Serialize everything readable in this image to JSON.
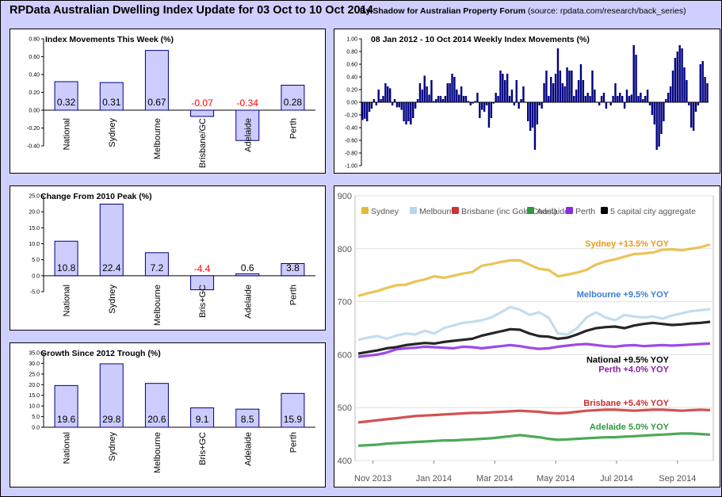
{
  "header": {
    "title": "RPData Australian Dwelling Index Update for 03 Oct to 10 Oct 2014",
    "by": "By Shadow for Australian Property Forum",
    "source": "(source: rpdata.com/research/back_series)"
  },
  "colors": {
    "bar_fill": "#ccccff",
    "bar_stroke": "#000080",
    "negative_label": "#ff0000",
    "weekly_bar": "#000080",
    "panel_bg": "#ffffff",
    "page_bg": "#cfcfff"
  },
  "chart_data": [
    {
      "id": "index-movements",
      "type": "bar",
      "title": "Index Movements This Week (%)",
      "categories": [
        "National",
        "Sydney",
        "Melbourne",
        "Brisbane/GC",
        "Adelaide",
        "Perth"
      ],
      "values": [
        0.32,
        0.31,
        0.67,
        -0.07,
        -0.34,
        0.28
      ],
      "labels": [
        "0.32",
        "0.31",
        "0.67",
        "-0.07",
        "-0.34",
        "0.28"
      ],
      "ylim": [
        -0.4,
        0.8
      ],
      "yticks": [
        "0.80",
        "0.60",
        "0.40",
        "0.20",
        "0.00",
        "-0.20",
        "-0.40"
      ],
      "ytick_values": [
        0.8,
        0.6,
        0.4,
        0.2,
        0.0,
        -0.2,
        -0.4
      ]
    },
    {
      "id": "weekly-movements",
      "type": "bar",
      "title": "08 Jan 2012 - 10 Oct 2014 Weekly Index Movements (%)",
      "ylim": [
        -1.0,
        1.0
      ],
      "yticks": [
        "1.00",
        "0.80",
        "0.60",
        "0.40",
        "0.20",
        "0.00",
        "-0.20",
        "-0.40",
        "-0.60",
        "-0.80",
        "-1.00"
      ],
      "ytick_values": [
        1.0,
        0.8,
        0.6,
        0.4,
        0.2,
        0.0,
        -0.2,
        -0.4,
        -0.6,
        -0.8,
        -1.0
      ],
      "values": [
        -0.28,
        -0.26,
        -0.3,
        -0.15,
        -0.1,
        0.05,
        -0.05,
        0.2,
        0.05,
        0.1,
        0.3,
        0.25,
        0.22,
        -0.05,
        0.05,
        -0.08,
        -0.08,
        -0.12,
        -0.3,
        -0.35,
        -0.3,
        -0.35,
        -0.25,
        -0.1,
        0.05,
        0.3,
        0.2,
        0.42,
        0.25,
        0.12,
        0.35,
        0.02,
        0.05,
        0.1,
        0.1,
        0.05,
        0.1,
        0.3,
        0.3,
        0.45,
        0.4,
        0.2,
        0.12,
        0.25,
        0.1,
        0.1,
        0.02,
        -0.05,
        -0.02,
        0.02,
        0.15,
        -0.25,
        -0.12,
        -0.15,
        -0.05,
        -0.4,
        -0.25,
        -0.02,
        0.15,
        0.1,
        0.5,
        0.45,
        0.35,
        0.45,
        0.1,
        0.2,
        -0.05,
        0.35,
        -0.1,
        0.05,
        0.25,
        0.0,
        -0.3,
        -0.45,
        -0.4,
        -0.75,
        -0.35,
        -0.05,
        -0.1,
        0.3,
        0.5,
        0.1,
        0.4,
        0.3,
        0.45,
        0.85,
        0.5,
        0.3,
        0.25,
        0.55,
        0.5,
        0.5,
        0.1,
        0.2,
        0.35,
        0.6,
        0.35,
        0.1,
        0.15,
        0.1,
        0.5,
        0.2,
        0.0,
        -0.05,
        0.1,
        0.15,
        -0.1,
        0.0,
        -0.05,
        0.1,
        0.3,
        0.1,
        0.15,
        0.1,
        -0.1,
        0.2,
        0.1,
        0.12,
        0.9,
        0.75,
        0.1,
        0.15,
        0.05,
        0.1,
        0.2,
        -0.05,
        -0.2,
        -0.35,
        -0.75,
        -0.7,
        -0.5,
        -0.3,
        0.05,
        0.15,
        0.25,
        0.5,
        0.7,
        0.8,
        0.9,
        0.85,
        0.55,
        0.35,
        -0.05,
        -0.4,
        -0.45,
        -0.15,
        -0.05,
        0.6,
        0.65,
        0.4,
        0.3
      ]
    },
    {
      "id": "change-from-peak",
      "type": "bar",
      "title": "Change From 2010 Peak (%)",
      "categories": [
        "National",
        "Sydney",
        "Melbourne",
        "Bris+GC",
        "Adelaide",
        "Perth"
      ],
      "values": [
        10.8,
        22.4,
        7.2,
        -4.4,
        0.6,
        3.8
      ],
      "labels": [
        "10.8",
        "22.4",
        "7.2",
        "-4.4",
        "0.6",
        "3.8"
      ],
      "ylim": [
        -5.0,
        25.0
      ],
      "yticks": [
        "25.0",
        "20.0",
        "15.0",
        "10.0",
        "5.0",
        "0.0",
        "-5.0"
      ],
      "ytick_values": [
        25,
        20,
        15,
        10,
        5,
        0,
        -5
      ]
    },
    {
      "id": "growth-since-trough",
      "type": "bar",
      "title": "Growth Since 2012 Trough (%)",
      "categories": [
        "National",
        "Sydney",
        "Melbourne",
        "Bris+GC",
        "Adelaide",
        "Perth"
      ],
      "values": [
        19.6,
        29.8,
        20.6,
        9.1,
        8.5,
        15.9
      ],
      "labels": [
        "19.6",
        "29.8",
        "20.6",
        "9.1",
        "8.5",
        "15.9"
      ],
      "ylim": [
        0,
        35
      ],
      "yticks": [
        "35.0",
        "30.0",
        "25.0",
        "20.0",
        "15.0",
        "10.0",
        "5.0",
        "0.0"
      ],
      "ytick_values": [
        35,
        30,
        25,
        20,
        15,
        10,
        5,
        0
      ]
    },
    {
      "id": "index-lines",
      "type": "line",
      "ylim": [
        400,
        900
      ],
      "yticks": [
        "900",
        "800",
        "700",
        "600",
        "500",
        "400"
      ],
      "ytick_values": [
        900,
        800,
        700,
        600,
        500,
        400
      ],
      "xticks": [
        "Nov 2013",
        "Jan 2014",
        "Mar 2014",
        "May 2014",
        "Jul 2014",
        "Sep 2014"
      ],
      "xtick_positions": [
        0.05,
        0.22,
        0.39,
        0.56,
        0.73,
        0.9
      ],
      "legend": [
        "Sydney",
        "Melbourne",
        "Brisbane (inc Gold Coast)",
        "Adelaide",
        "Perth",
        "5 capital city aggregate"
      ],
      "series": [
        {
          "name": "Sydney",
          "color": "#e8b83a",
          "values": [
            711,
            716,
            720,
            726,
            731,
            732,
            738,
            742,
            748,
            745,
            749,
            753,
            756,
            768,
            771,
            775,
            778,
            778,
            770,
            762,
            760,
            748,
            751,
            755,
            760,
            770,
            776,
            780,
            785,
            790,
            791,
            793,
            798,
            799,
            797,
            800,
            803,
            808
          ]
        },
        {
          "name": "Melbourne",
          "color": "#b7d7ec",
          "values": [
            628,
            632,
            635,
            630,
            636,
            640,
            638,
            645,
            640,
            650,
            655,
            660,
            662,
            665,
            670,
            680,
            690,
            685,
            675,
            680,
            670,
            640,
            638,
            650,
            670,
            680,
            670,
            665,
            675,
            672,
            670,
            672,
            668,
            674,
            678,
            682,
            684,
            686
          ]
        },
        {
          "name": "5 capital city aggregate",
          "color": "#000000",
          "values": [
            602,
            605,
            608,
            612,
            614,
            618,
            620,
            622,
            621,
            624,
            626,
            628,
            630,
            636,
            640,
            644,
            648,
            647,
            640,
            635,
            634,
            630,
            632,
            638,
            645,
            650,
            652,
            653,
            650,
            655,
            658,
            660,
            658,
            656,
            657,
            659,
            660,
            662
          ]
        },
        {
          "name": "Perth",
          "color": "#8a2be2",
          "values": [
            596,
            598,
            600,
            604,
            610,
            612,
            613,
            615,
            614,
            613,
            612,
            615,
            614,
            612,
            614,
            616,
            618,
            616,
            613,
            611,
            612,
            615,
            617,
            619,
            620,
            618,
            616,
            615,
            617,
            618,
            616,
            617,
            618,
            617,
            618,
            619,
            620,
            621
          ]
        },
        {
          "name": "Brisbane (inc Gold Coast)",
          "color": "#cc3333",
          "values": [
            472,
            474,
            476,
            478,
            480,
            482,
            484,
            485,
            486,
            487,
            488,
            489,
            490,
            490,
            491,
            492,
            493,
            494,
            493,
            492,
            490,
            489,
            490,
            492,
            494,
            495,
            496,
            496,
            495,
            494,
            495,
            496,
            496,
            495,
            494,
            495,
            496,
            495
          ]
        },
        {
          "name": "Adelaide",
          "color": "#2e9a3c",
          "values": [
            428,
            429,
            430,
            432,
            433,
            434,
            435,
            436,
            437,
            438,
            438,
            439,
            440,
            441,
            442,
            444,
            446,
            448,
            446,
            444,
            441,
            439,
            440,
            441,
            442,
            443,
            444,
            444,
            445,
            446,
            447,
            448,
            449,
            450,
            451,
            451,
            450,
            449
          ]
        }
      ],
      "annotations": [
        {
          "text": "Sydney +13.5% YOY",
          "color": "#e89a1a",
          "value": 810
        },
        {
          "text": "Melbourne +9.5% YOY",
          "color": "#3b7fd6",
          "value": 714
        },
        {
          "text": "National +9.5% YOY",
          "color": "#000000",
          "value": 591
        },
        {
          "text": "Perth +4.0% YOY",
          "color": "#8a1fa6",
          "value": 573
        },
        {
          "text": "Brisbane +5.4% YOY",
          "color": "#cc2a2a",
          "value": 509
        },
        {
          "text": "Adelaide 5.0% YOY",
          "color": "#2a9a3a",
          "value": 464
        }
      ]
    }
  ]
}
